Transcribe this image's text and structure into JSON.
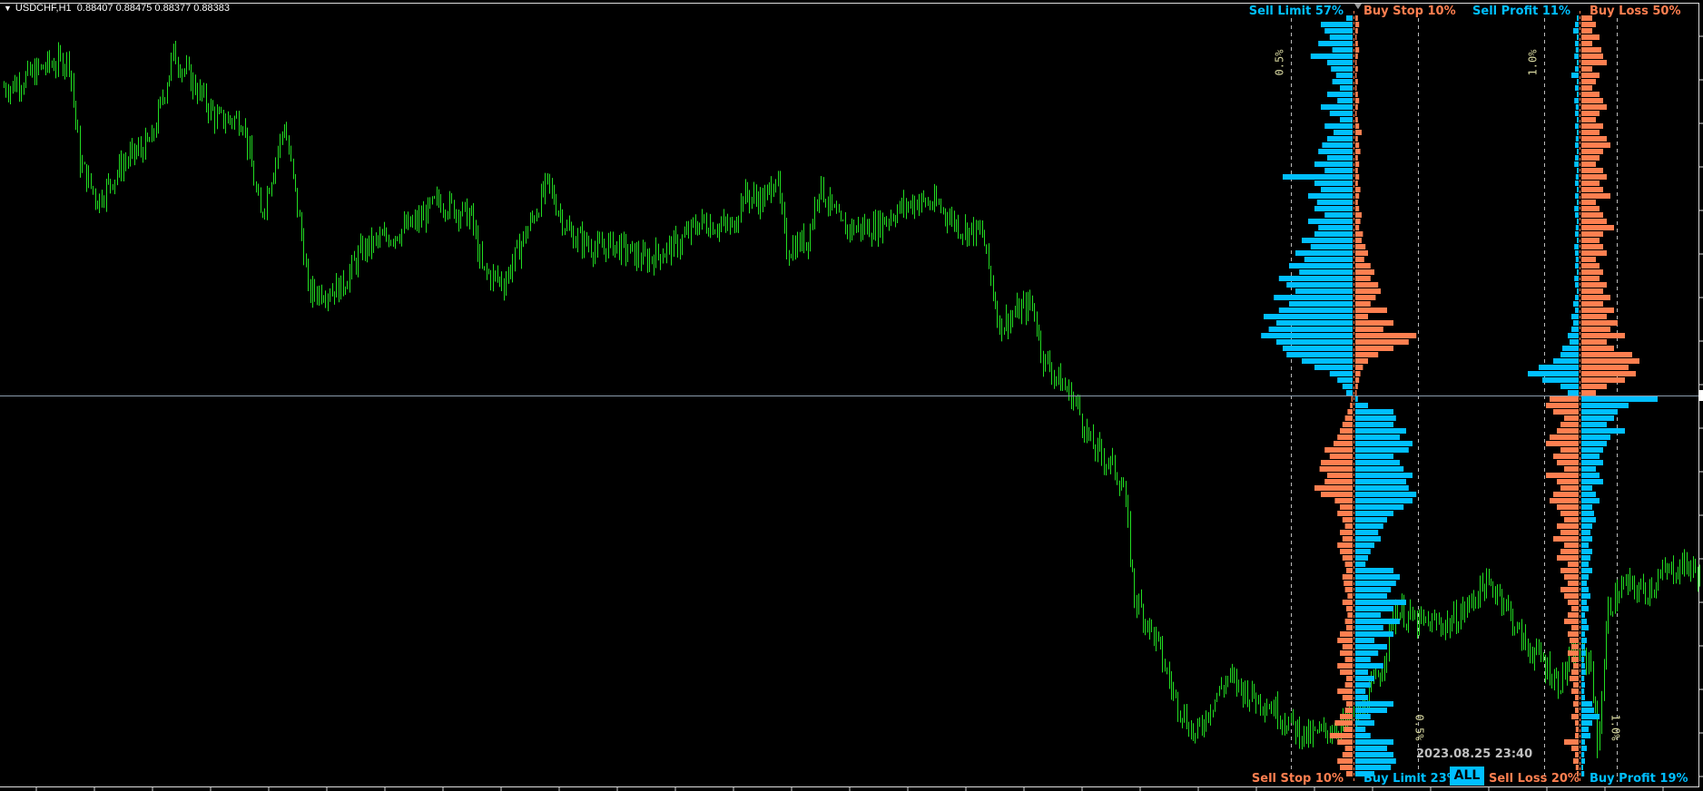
{
  "header": {
    "symbol": "USDCHF,H1",
    "ohlc": "0.88407 0.88475 0.88377 0.88383"
  },
  "labels": {
    "sell_limit": "Sell Limit 57%",
    "buy_stop": "Buy Stop 10%",
    "sell_profit": "Sell Profit 11%",
    "buy_loss": "Buy Loss 50%",
    "sell_stop": "Sell Stop 10%",
    "buy_limit": "Buy Limit 23%",
    "sell_loss": "Sell Loss 20%",
    "buy_profit": "Buy Profit 19%",
    "all_button": "ALL",
    "timestamp": "2023.08.25 23:40",
    "orders_scale": "0.5%",
    "positions_scale": "1.0%"
  },
  "colors": {
    "blue": "#00bfff",
    "orange": "#ff7f50",
    "candles": "#22dd22",
    "crosshair": "#8a9bab",
    "background": "#000000"
  },
  "chart_data": {
    "type": "bar",
    "price_range": [
      0.87837,
      0.89837
    ],
    "price_series": [
      [
        3,
        0.89618
      ],
      [
        20,
        0.89672
      ],
      [
        30,
        0.89686
      ],
      [
        35,
        0.89426
      ],
      [
        43,
        0.8933
      ],
      [
        55,
        0.89426
      ],
      [
        68,
        0.89481
      ],
      [
        78,
        0.897
      ],
      [
        88,
        0.89618
      ],
      [
        98,
        0.89535
      ],
      [
        110,
        0.89535
      ],
      [
        118,
        0.89288
      ],
      [
        129,
        0.89522
      ],
      [
        138,
        0.89206
      ],
      [
        140,
        0.89096
      ],
      [
        155,
        0.8911
      ],
      [
        165,
        0.89206
      ],
      [
        175,
        0.89234
      ],
      [
        190,
        0.89275
      ],
      [
        200,
        0.8933
      ],
      [
        215,
        0.89288
      ],
      [
        220,
        0.89151
      ],
      [
        230,
        0.89124
      ],
      [
        240,
        0.89247
      ],
      [
        250,
        0.89371
      ],
      [
        260,
        0.89247
      ],
      [
        273,
        0.89206
      ],
      [
        280,
        0.8922
      ],
      [
        295,
        0.89179
      ],
      [
        310,
        0.8922
      ],
      [
        320,
        0.89275
      ],
      [
        335,
        0.89261
      ],
      [
        340,
        0.89343
      ],
      [
        350,
        0.8933
      ],
      [
        355,
        0.89398
      ],
      [
        360,
        0.89206
      ],
      [
        370,
        0.89234
      ],
      [
        375,
        0.89371
      ],
      [
        385,
        0.89261
      ],
      [
        400,
        0.89261
      ],
      [
        410,
        0.89302
      ],
      [
        420,
        0.8933
      ],
      [
        430,
        0.89316
      ],
      [
        440,
        0.89261
      ],
      [
        450,
        0.89247
      ],
      [
        458,
        0.89014
      ],
      [
        468,
        0.89055
      ],
      [
        473,
        0.89069
      ],
      [
        478,
        0.88932
      ],
      [
        485,
        0.88877
      ],
      [
        493,
        0.88822
      ],
      [
        500,
        0.88712
      ],
      [
        510,
        0.88658
      ],
      [
        515,
        0.88603
      ],
      [
        520,
        0.88328
      ],
      [
        530,
        0.88219
      ],
      [
        538,
        0.88082
      ],
      [
        548,
        0.87972
      ],
      [
        555,
        0.88054
      ],
      [
        563,
        0.88123
      ],
      [
        573,
        0.88082
      ],
      [
        583,
        0.88054
      ],
      [
        590,
        0.88013
      ],
      [
        600,
        0.87972
      ],
      [
        613,
        0.87999
      ],
      [
        623,
        0.88027
      ],
      [
        633,
        0.88136
      ],
      [
        640,
        0.88301
      ],
      [
        650,
        0.8826
      ],
      [
        665,
        0.8826
      ],
      [
        673,
        0.88301
      ],
      [
        680,
        0.88356
      ],
      [
        688,
        0.88342
      ],
      [
        698,
        0.88219
      ],
      [
        708,
        0.88164
      ],
      [
        715,
        0.88109
      ],
      [
        723,
        0.88191
      ],
      [
        730,
        0.88164
      ],
      [
        733,
        0.87944
      ],
      [
        738,
        0.88301
      ],
      [
        745,
        0.88356
      ],
      [
        755,
        0.88342
      ],
      [
        763,
        0.88383
      ],
      [
        773,
        0.88411
      ],
      [
        780,
        0.88383
      ]
    ],
    "order_book": {
      "scale_percent": 0.5,
      "sell_limit": [
        0.05,
        0.25,
        0.22,
        0.18,
        0.27,
        0.16,
        0.33,
        0.2,
        0.17,
        0.13,
        0.16,
        0.1,
        0.2,
        0.12,
        0.25,
        0.18,
        0.1,
        0.22,
        0.15,
        0.2,
        0.24,
        0.27,
        0.2,
        0.3,
        0.22,
        0.55,
        0.3,
        0.25,
        0.35,
        0.28,
        0.3,
        0.22,
        0.35,
        0.27,
        0.3,
        0.4,
        0.33,
        0.45,
        0.38,
        0.5,
        0.42,
        0.58,
        0.52,
        0.45,
        0.62,
        0.5,
        0.58,
        0.7,
        0.6,
        0.66,
        0.72,
        0.6,
        0.55,
        0.52,
        0.4,
        0.3,
        0.18,
        0.12,
        0.08,
        0.05
      ],
      "buy_stop": [
        0.02,
        0.03,
        0.02,
        0.01,
        0.02,
        0.03,
        0.02,
        0.01,
        0.02,
        0.01,
        0.02,
        0.01,
        0.02,
        0.03,
        0.02,
        0.01,
        0.02,
        0.03,
        0.05,
        0.02,
        0.03,
        0.04,
        0.02,
        0.03,
        0.02,
        0.03,
        0.02,
        0.04,
        0.03,
        0.02,
        0.03,
        0.05,
        0.04,
        0.03,
        0.06,
        0.05,
        0.08,
        0.1,
        0.07,
        0.12,
        0.15,
        0.12,
        0.18,
        0.2,
        0.16,
        0.12,
        0.25,
        0.1,
        0.3,
        0.22,
        0.48,
        0.42,
        0.3,
        0.18,
        0.1,
        0.06,
        0.04,
        0.03,
        0.02,
        0.01
      ],
      "buy_limit": [
        0.02,
        0.1,
        0.3,
        0.32,
        0.3,
        0.4,
        0.35,
        0.45,
        0.42,
        0.3,
        0.35,
        0.38,
        0.45,
        0.4,
        0.42,
        0.48,
        0.45,
        0.38,
        0.3,
        0.25,
        0.22,
        0.18,
        0.2,
        0.15,
        0.12,
        0.1,
        0.08,
        0.3,
        0.35,
        0.32,
        0.28,
        0.25,
        0.4,
        0.3,
        0.2,
        0.35,
        0.22,
        0.3,
        0.15,
        0.25,
        0.18,
        0.12,
        0.22,
        0.1,
        0.15,
        0.12,
        0.08,
        0.1,
        0.3,
        0.25,
        0.12,
        0.15,
        0.08,
        0.12,
        0.3,
        0.25,
        0.3,
        0.32,
        0.28,
        0.15
      ],
      "sell_stop": [
        0.01,
        0.02,
        0.04,
        0.06,
        0.08,
        0.1,
        0.12,
        0.15,
        0.22,
        0.18,
        0.25,
        0.26,
        0.2,
        0.22,
        0.3,
        0.25,
        0.14,
        0.1,
        0.12,
        0.08,
        0.06,
        0.1,
        0.08,
        0.12,
        0.1,
        0.08,
        0.06,
        0.05,
        0.08,
        0.07,
        0.06,
        0.04,
        0.08,
        0.05,
        0.04,
        0.06,
        0.05,
        0.1,
        0.12,
        0.08,
        0.1,
        0.06,
        0.12,
        0.1,
        0.05,
        0.06,
        0.12,
        0.08,
        0.05,
        0.06,
        0.1,
        0.14,
        0.07,
        0.18,
        0.12,
        0.06,
        0.08,
        0.12,
        0.1,
        0.05
      ]
    },
    "position_book": {
      "scale_percent": 1.0,
      "sell_profit": [
        0.05,
        0.1,
        0.15,
        0.05,
        0.1,
        0.08,
        0.12,
        0.05,
        0.1,
        0.2,
        0.05,
        0.1,
        0.05,
        0.12,
        0.08,
        0.1,
        0.05,
        0.1,
        0.05,
        0.08,
        0.1,
        0.05,
        0.1,
        0.12,
        0.05,
        0.08,
        0.1,
        0.05,
        0.1,
        0.05,
        0.12,
        0.1,
        0.05,
        0.08,
        0.1,
        0.05,
        0.12,
        0.1,
        0.08,
        0.1,
        0.05,
        0.12,
        0.1,
        0.05,
        0.1,
        0.15,
        0.1,
        0.2,
        0.15,
        0.2,
        0.3,
        0.25,
        0.45,
        0.5,
        0.7,
        1.1,
        1.4,
        1.0,
        0.5,
        0.3
      ],
      "buy_loss": [
        0.3,
        0.4,
        0.3,
        0.5,
        0.3,
        0.55,
        0.6,
        0.7,
        0.3,
        0.5,
        0.4,
        0.3,
        0.5,
        0.6,
        0.7,
        0.5,
        0.4,
        0.6,
        0.5,
        0.7,
        0.8,
        0.6,
        0.5,
        0.4,
        0.6,
        0.7,
        0.5,
        0.6,
        0.8,
        0.4,
        0.5,
        0.6,
        0.7,
        0.9,
        0.6,
        0.5,
        0.6,
        0.7,
        0.4,
        0.5,
        0.6,
        0.5,
        0.7,
        0.6,
        0.8,
        0.6,
        0.9,
        0.7,
        1.0,
        0.8,
        1.2,
        0.7,
        0.9,
        1.4,
        1.6,
        1.3,
        1.5,
        1.2,
        0.7,
        0.4
      ],
      "buy_profit": [
        2.1,
        1.3,
        1.0,
        0.9,
        0.7,
        1.2,
        0.8,
        0.7,
        0.6,
        0.5,
        0.6,
        0.4,
        0.5,
        0.6,
        0.3,
        0.4,
        0.5,
        0.3,
        0.35,
        0.4,
        0.3,
        0.25,
        0.3,
        0.2,
        0.3,
        0.25,
        0.2,
        0.3,
        0.2,
        0.15,
        0.2,
        0.25,
        0.15,
        0.2,
        0.1,
        0.15,
        0.2,
        0.1,
        0.15,
        0.1,
        0.12,
        0.08,
        0.1,
        0.12,
        0.08,
        0.1,
        0.08,
        0.1,
        0.3,
        0.35,
        0.5,
        0.3,
        0.2,
        0.25,
        0.1,
        0.15,
        0.08,
        0.1,
        0.05,
        0.08
      ],
      "sell_loss": [
        0.8,
        0.9,
        0.7,
        0.4,
        0.5,
        0.6,
        0.8,
        0.9,
        0.5,
        0.7,
        0.6,
        0.4,
        0.9,
        0.6,
        0.5,
        0.7,
        0.8,
        0.6,
        0.5,
        0.4,
        0.6,
        0.5,
        0.7,
        0.4,
        0.5,
        0.6,
        0.3,
        0.5,
        0.4,
        0.3,
        0.5,
        0.4,
        0.3,
        0.2,
        0.3,
        0.4,
        0.2,
        0.3,
        0.25,
        0.2,
        0.3,
        0.2,
        0.15,
        0.2,
        0.25,
        0.15,
        0.2,
        0.1,
        0.15,
        0.1,
        0.2,
        0.1,
        0.08,
        0.1,
        0.4,
        0.2,
        0.1,
        0.15,
        0.08,
        0.05
      ]
    }
  }
}
